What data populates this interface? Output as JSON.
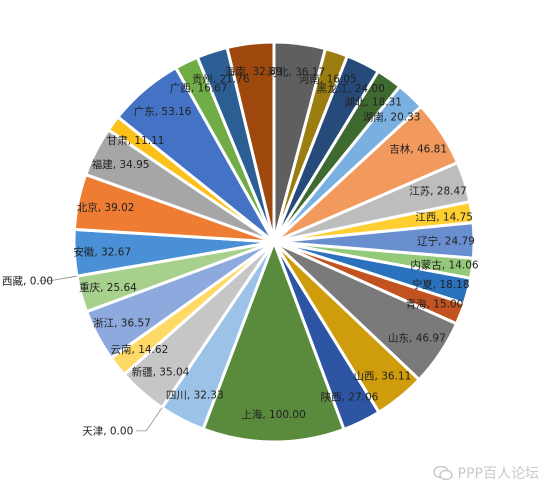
{
  "chart_data": {
    "type": "pie",
    "title": "",
    "series": [
      {
        "label": "河北",
        "value": 36.17,
        "color": "#5f5f5f"
      },
      {
        "label": "河南",
        "value": 16.05,
        "color": "#9c7d0f"
      },
      {
        "label": "黑龙江",
        "value": 24.0,
        "color": "#264a7a"
      },
      {
        "label": "湖北",
        "value": 18.31,
        "color": "#3e6a2f"
      },
      {
        "label": "湖南",
        "value": 20.33,
        "color": "#7ab0e0"
      },
      {
        "label": "吉林",
        "value": 46.81,
        "color": "#f29a5e"
      },
      {
        "label": "江苏",
        "value": 28.47,
        "color": "#bdbdbd"
      },
      {
        "label": "江西",
        "value": 14.75,
        "color": "#ffcf32"
      },
      {
        "label": "辽宁",
        "value": 24.79,
        "color": "#6a8fd0"
      },
      {
        "label": "内蒙古",
        "value": 14.06,
        "color": "#95c97a"
      },
      {
        "label": "宁夏",
        "value": 18.18,
        "color": "#2a72bd"
      },
      {
        "label": "青海",
        "value": 15.0,
        "color": "#c25320"
      },
      {
        "label": "山东",
        "value": 46.97,
        "color": "#7a7a7a"
      },
      {
        "label": "山西",
        "value": 36.11,
        "color": "#cf9d0b"
      },
      {
        "label": "陕西",
        "value": 27.06,
        "color": "#2d55a3"
      },
      {
        "label": "上海",
        "value": 100.0,
        "color": "#5a8a3c"
      },
      {
        "label": "四川",
        "value": 32.33,
        "color": "#9cc2e8"
      },
      {
        "label": "天津",
        "value": 0.0,
        "color": "#f2a36b"
      },
      {
        "label": "新疆",
        "value": 35.04,
        "color": "#c6c6c6"
      },
      {
        "label": "云南",
        "value": 14.62,
        "color": "#ffd966"
      },
      {
        "label": "浙江",
        "value": 36.57,
        "color": "#8da9dd"
      },
      {
        "label": "重庆",
        "value": 25.64,
        "color": "#a8d08d"
      },
      {
        "label": "西藏",
        "value": 0.0,
        "color": "#2f6fb6"
      },
      {
        "label": "安徽",
        "value": 32.67,
        "color": "#4a90d6"
      },
      {
        "label": "北京",
        "value": 39.02,
        "color": "#ee7c32"
      },
      {
        "label": "福建",
        "value": 34.95,
        "color": "#a6a6a6"
      },
      {
        "label": "甘肃",
        "value": 11.11,
        "color": "#fbc11a"
      },
      {
        "label": "广东",
        "value": 53.16,
        "color": "#4472c4"
      },
      {
        "label": "广西",
        "value": 16.67,
        "color": "#70ad47"
      },
      {
        "label": "贵州",
        "value": 21.76,
        "color": "#2b5f94"
      },
      {
        "label": "海南",
        "value": 32.89,
        "color": "#9e480e"
      }
    ]
  },
  "watermark": {
    "text": "PPP百人论坛"
  }
}
